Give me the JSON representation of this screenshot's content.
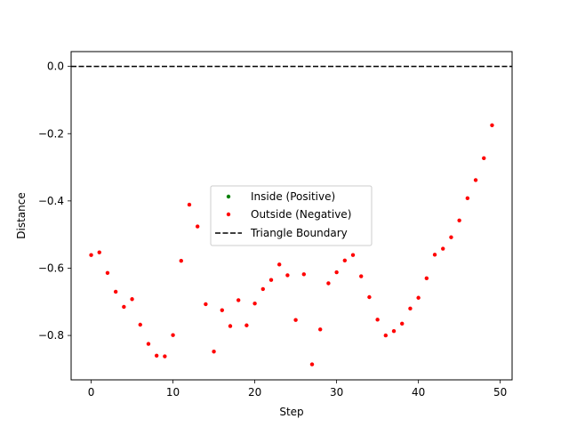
{
  "chart_data": {
    "type": "scatter",
    "title": "",
    "xlabel": "Step",
    "ylabel": "Distance",
    "xlim": [
      -2.45,
      51.45
    ],
    "ylim": [
      -0.932,
      0.044
    ],
    "xticks": [
      0,
      10,
      20,
      30,
      40,
      50
    ],
    "yticks": [
      0.0,
      -0.2,
      -0.4,
      -0.6,
      -0.8
    ],
    "ytick_labels": [
      "0.0",
      "−0.2",
      "−0.4",
      "−0.6",
      "−0.8"
    ],
    "grid": false,
    "legend_position": "center",
    "series": [
      {
        "name": "Inside (Positive)",
        "color": "#008000",
        "marker": "circle",
        "x": [],
        "y": []
      },
      {
        "name": "Outside (Negative)",
        "color": "#ff0000",
        "marker": "circle",
        "x": [
          0,
          1,
          2,
          3,
          4,
          5,
          6,
          7,
          8,
          9,
          10,
          11,
          12,
          13,
          14,
          15,
          16,
          17,
          18,
          19,
          20,
          21,
          22,
          23,
          24,
          25,
          26,
          27,
          28,
          29,
          30,
          31,
          32,
          33,
          34,
          35,
          36,
          37,
          38,
          39,
          40,
          41,
          42,
          43,
          44,
          45,
          46,
          47,
          48,
          49
        ],
        "y": [
          -0.561,
          -0.553,
          -0.614,
          -0.67,
          -0.715,
          -0.692,
          -0.768,
          -0.825,
          -0.86,
          -0.862,
          -0.799,
          -0.578,
          -0.411,
          -0.476,
          -0.707,
          -0.848,
          -0.725,
          -0.772,
          -0.695,
          -0.77,
          -0.705,
          -0.662,
          -0.635,
          -0.589,
          -0.621,
          -0.754,
          -0.618,
          -0.886,
          -0.782,
          -0.645,
          -0.612,
          -0.577,
          -0.561,
          -0.624,
          -0.686,
          -0.753,
          -0.8,
          -0.787,
          -0.765,
          -0.72,
          -0.688,
          -0.63,
          -0.56,
          -0.542,
          -0.508,
          -0.458,
          -0.392,
          -0.338,
          -0.273,
          -0.175
        ]
      }
    ],
    "reference_lines": [
      {
        "name": "Triangle Boundary",
        "y": 0.0,
        "color": "#000000",
        "style": "dashed"
      }
    ]
  }
}
